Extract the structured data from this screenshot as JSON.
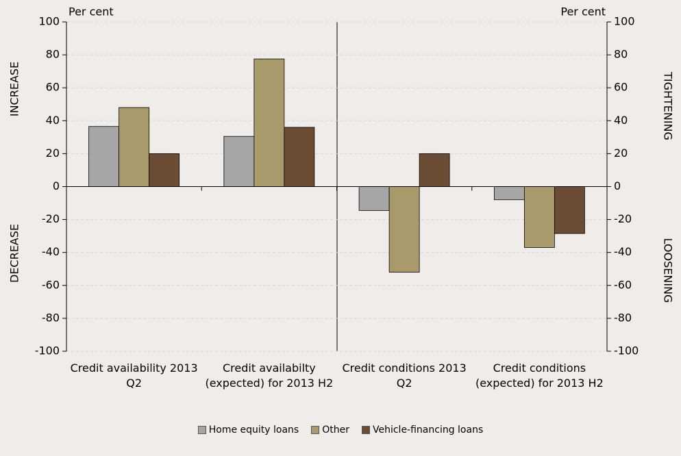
{
  "chart_data": {
    "type": "bar",
    "categories": [
      "Credit availability 2013 Q2",
      "Credit availabilty (expected) for 2013 H2",
      "Credit conditions 2013 Q2",
      "Credit conditions (expected) for 2013 H2"
    ],
    "series": [
      {
        "name": "Home equity loans",
        "color": "#a6a6a6",
        "values": [
          36.5,
          30.5,
          -14.5,
          -8
        ]
      },
      {
        "name": "Other",
        "color": "#a99a6c",
        "values": [
          48,
          77.5,
          -52,
          -37
        ]
      },
      {
        "name": "Vehicle-financing loans",
        "color": "#6b4c35",
        "values": [
          20,
          36,
          20,
          -28.5
        ]
      }
    ],
    "y_label": "Per cent",
    "y2_label": "Per cent",
    "annotations": [
      "INCREASE",
      "DECREASE",
      "TIGHTENING",
      "LOOSENING"
    ],
    "ylim": [
      -100,
      100
    ],
    "yticks": [
      -100,
      -80,
      -60,
      -40,
      -20,
      0,
      20,
      40,
      60,
      80,
      100
    ],
    "y2lim": [
      -100,
      100
    ],
    "y2ticks": [
      -100,
      -80,
      -60,
      -40,
      -20,
      0,
      20,
      40,
      60,
      80,
      100
    ],
    "grid": true
  }
}
